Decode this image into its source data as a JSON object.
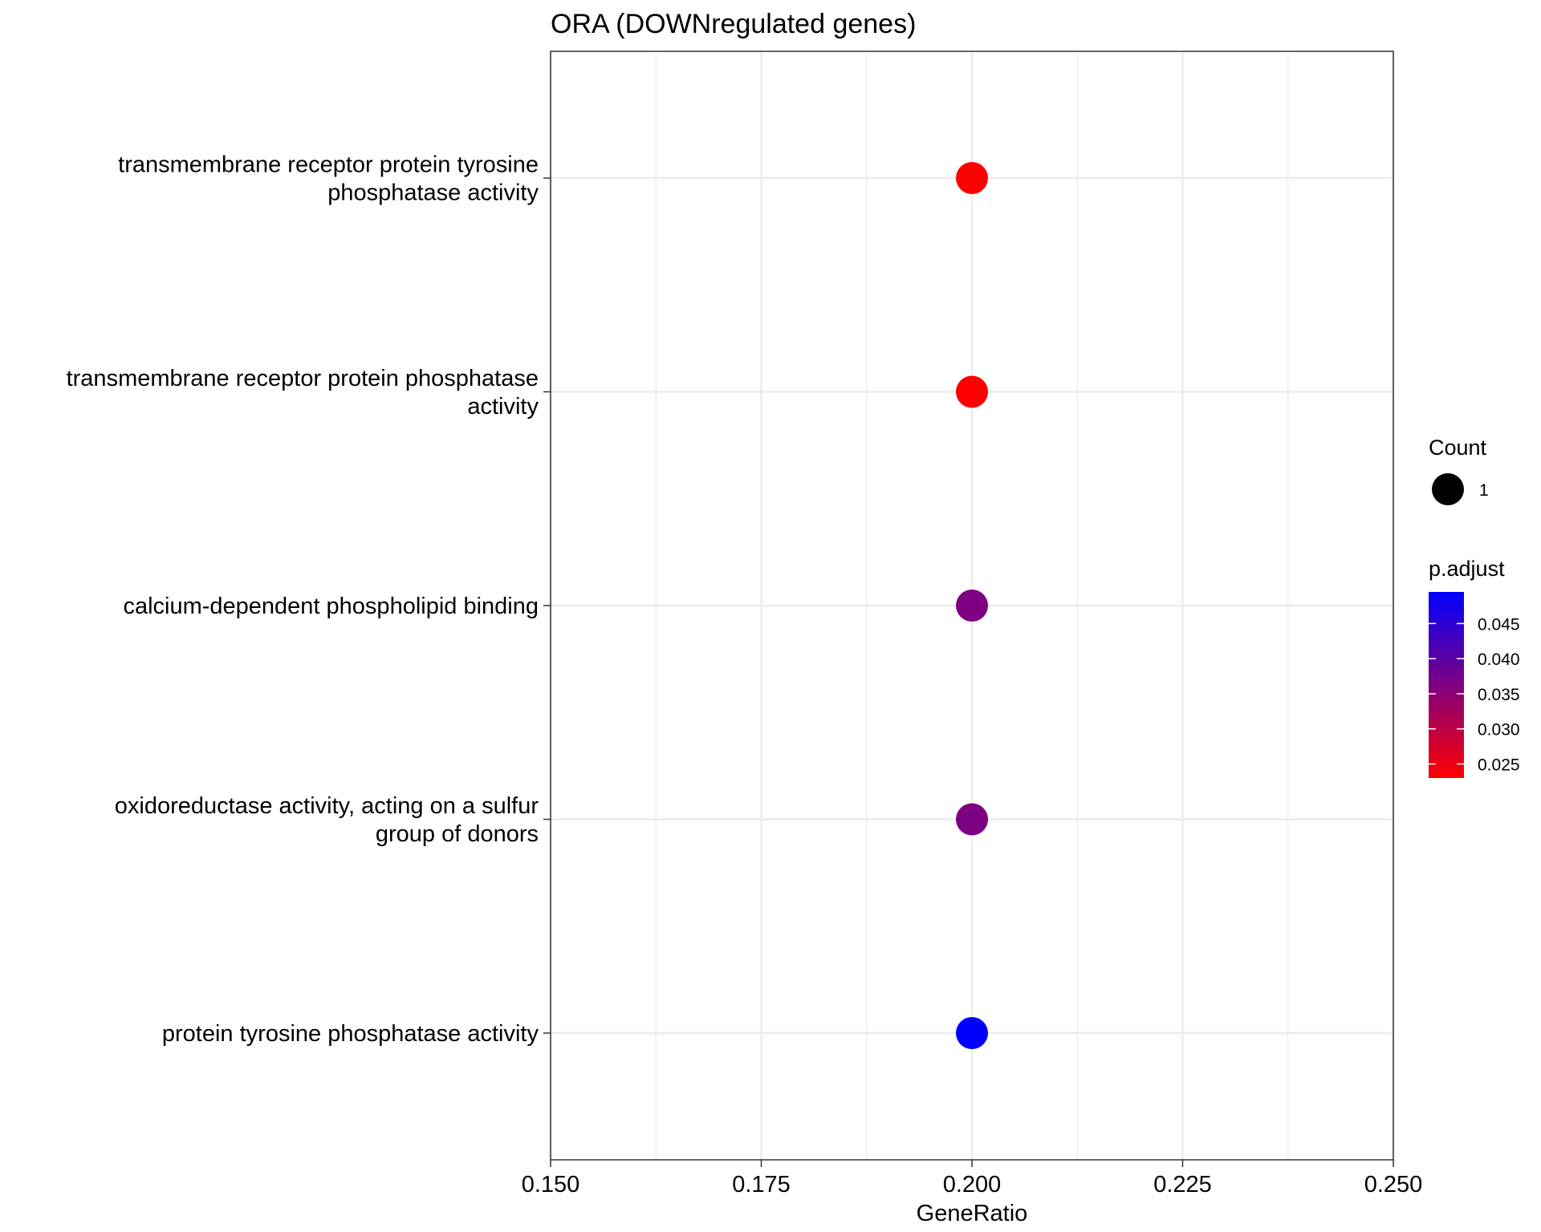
{
  "chart_data": {
    "type": "scatter",
    "title": "ORA (DOWNregulated genes)",
    "xlabel": "GeneRatio",
    "ylabel": "",
    "xlim": [
      0.15,
      0.25
    ],
    "x_ticks": [
      "0.150",
      "0.175",
      "0.200",
      "0.225",
      "0.250"
    ],
    "grid": true,
    "legend_position": "right",
    "categories": [
      [
        "transmembrane receptor protein tyrosine",
        "phosphatase activity"
      ],
      [
        "transmembrane receptor protein phosphatase",
        "activity"
      ],
      [
        "calcium-dependent phospholipid binding"
      ],
      [
        "oxidoreductase activity, acting on a sulfur",
        "group of donors"
      ],
      [
        "protein tyrosine phosphatase activity"
      ]
    ],
    "points": [
      {
        "x": 0.2,
        "count": 1,
        "p_adjust": 0.023
      },
      {
        "x": 0.2,
        "count": 1,
        "p_adjust": 0.023
      },
      {
        "x": 0.2,
        "count": 1,
        "p_adjust": 0.0365
      },
      {
        "x": 0.2,
        "count": 1,
        "p_adjust": 0.0365
      },
      {
        "x": 0.2,
        "count": 1,
        "p_adjust": 0.0495
      }
    ],
    "size_legend": {
      "title": "Count",
      "entries": [
        {
          "label": "1",
          "value": 1
        }
      ]
    },
    "color_legend": {
      "title": "p.adjust",
      "range": [
        0.023,
        0.0495
      ],
      "breaks": [
        0.045,
        0.04,
        0.035,
        0.03,
        0.025
      ],
      "break_labels": [
        "0.045",
        "0.040",
        "0.035",
        "0.030",
        "0.025"
      ],
      "low_color": "#FF0000",
      "high_color": "#0000FF"
    }
  }
}
